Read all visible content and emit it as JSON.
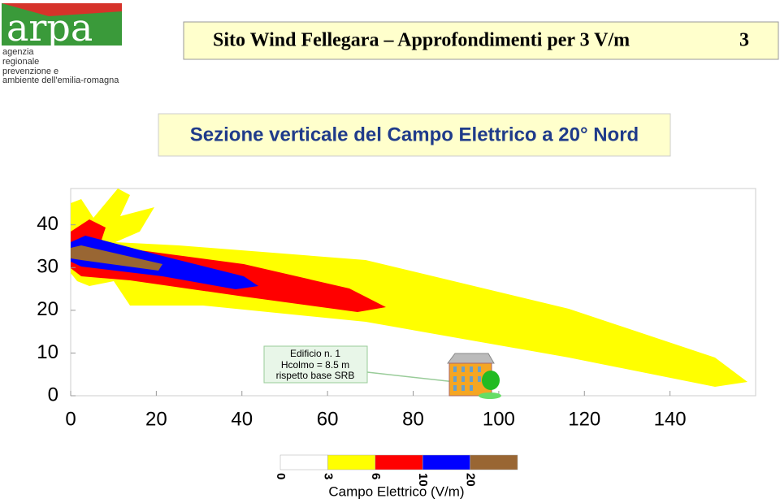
{
  "header": {
    "logo": "arpa",
    "agency": [
      "agenzia",
      "regionale",
      "prevenzione e",
      "ambiente dell'emilia-romagna"
    ],
    "title": "Sito Wind Fellegara – Approfondimenti per 3 V/m",
    "page": "3"
  },
  "subtitle": "Sezione verticale del Campo Elettrico a 20° Nord",
  "chart_data": {
    "type": "contour",
    "xlim": [
      0,
      160
    ],
    "xticks": [
      0,
      20,
      40,
      60,
      80,
      100,
      120,
      140
    ],
    "ylim": [
      0,
      48.5
    ],
    "yticks": [
      0,
      10,
      20,
      30,
      40
    ],
    "levels": [
      0,
      3,
      6,
      10,
      20
    ],
    "colors": [
      "#ffffff",
      "#ffff00",
      "#ff0000",
      "#0000ff",
      "#996633"
    ],
    "colorbar_label": "Campo Elettrico (V/m)",
    "annotation": [
      "Edificio n. 1",
      "Hcolmo = 8.5 m",
      "rispetto base SRB"
    ]
  }
}
